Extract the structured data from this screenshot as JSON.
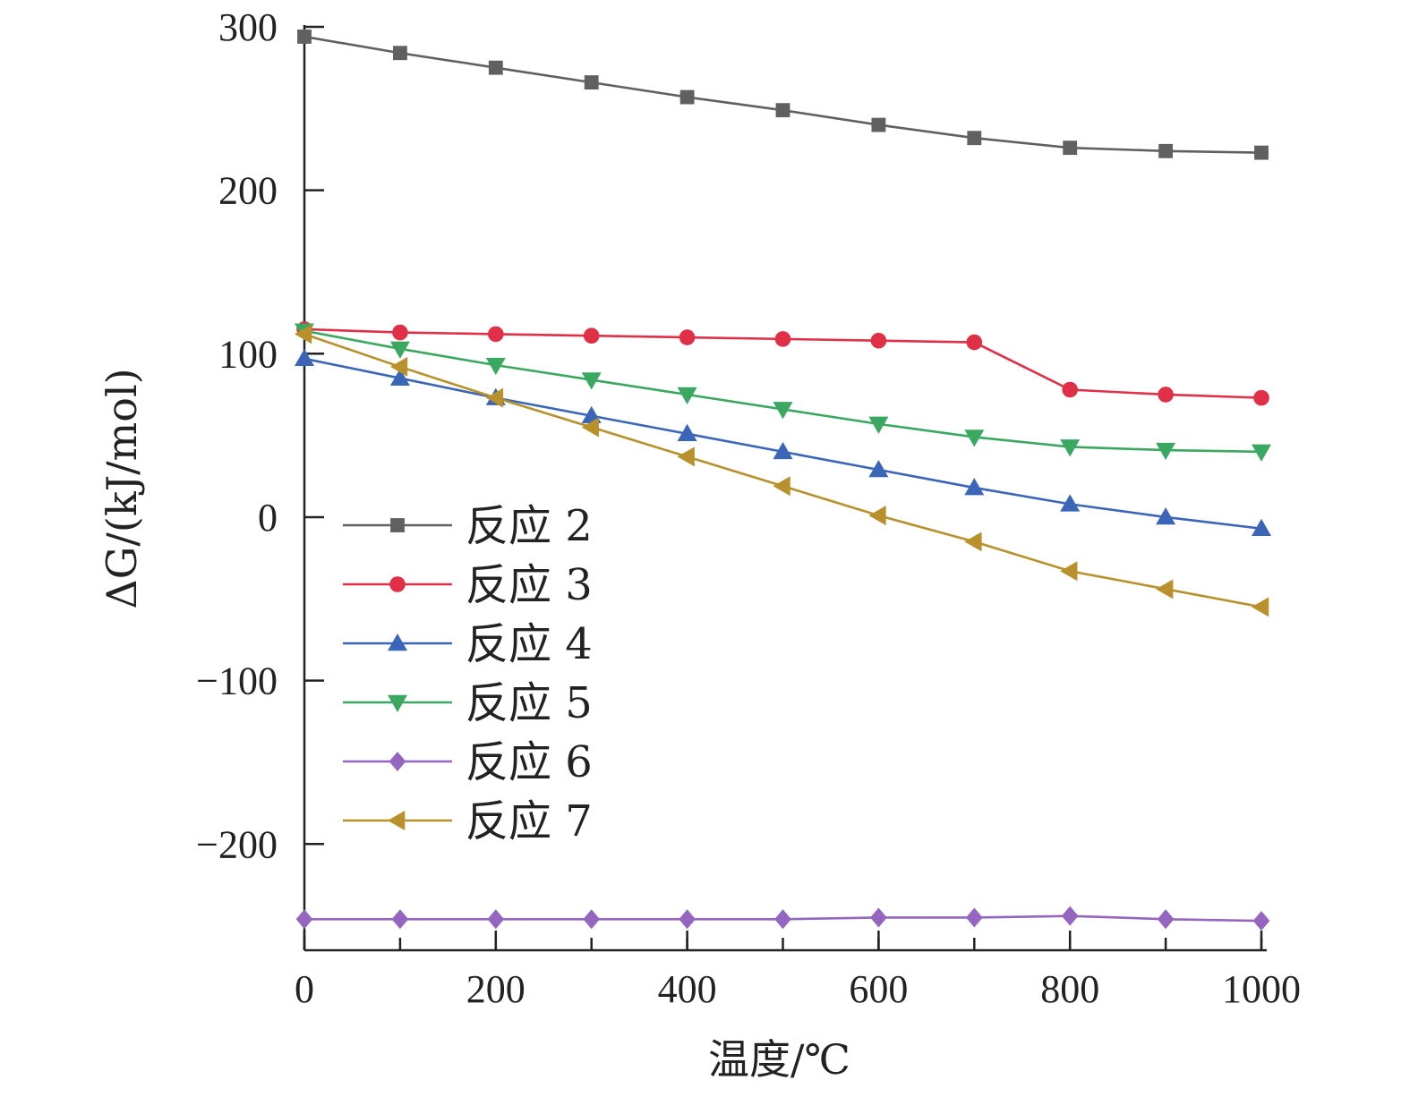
{
  "chart_data": {
    "type": "line",
    "title": "",
    "xlabel": "温度/℃",
    "ylabel": "ΔG/(kJ/mol)",
    "xlim": [
      0,
      1000
    ],
    "ylim": [
      -265,
      300
    ],
    "xticks": [
      0,
      200,
      400,
      600,
      800,
      1000
    ],
    "yticks": [
      300,
      200,
      100,
      0,
      -100,
      -200
    ],
    "ytick_labels": [
      "300",
      "200",
      "100",
      "0",
      "−100",
      "−200"
    ],
    "grid": false,
    "legend_position": "center-left",
    "x": [
      0,
      100,
      200,
      300,
      400,
      500,
      600,
      700,
      800,
      900,
      1000
    ],
    "series": [
      {
        "name": "反应 2",
        "color": "#606060",
        "marker": "square",
        "values": [
          294,
          284,
          275,
          266,
          257,
          249,
          240,
          232,
          226,
          224,
          223
        ]
      },
      {
        "name": "反应 3",
        "color": "#e03048",
        "marker": "circle",
        "values": [
          115,
          113,
          112,
          111,
          110,
          109,
          108,
          107,
          78,
          75,
          73
        ]
      },
      {
        "name": "反应 4",
        "color": "#3b66b8",
        "marker": "triangle-up",
        "values": [
          97,
          85,
          73,
          62,
          51,
          40,
          29,
          18,
          8,
          0,
          -7
        ]
      },
      {
        "name": "反应 5",
        "color": "#3aa860",
        "marker": "triangle-down",
        "values": [
          114,
          103,
          93,
          84,
          75,
          66,
          57,
          49,
          43,
          41,
          40
        ]
      },
      {
        "name": "反应 6",
        "color": "#9466c0",
        "marker": "diamond",
        "values": [
          -246,
          -246,
          -246,
          -246,
          -246,
          -246,
          -245,
          -245,
          -244,
          -246,
          -247
        ]
      },
      {
        "name": "反应 7",
        "color": "#b8902c",
        "marker": "triangle-left",
        "values": [
          112,
          92,
          73,
          55,
          37,
          19,
          1,
          -15,
          -33,
          -44,
          -55
        ]
      }
    ]
  }
}
